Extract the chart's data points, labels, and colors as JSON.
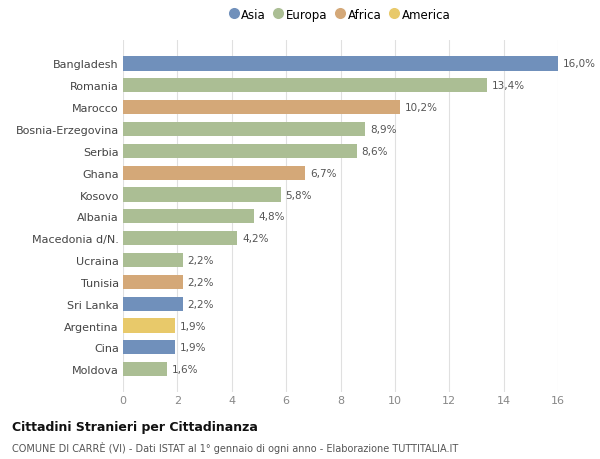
{
  "categories": [
    "Bangladesh",
    "Romania",
    "Marocco",
    "Bosnia-Erzegovina",
    "Serbia",
    "Ghana",
    "Kosovo",
    "Albania",
    "Macedonia d/N.",
    "Ucraina",
    "Tunisia",
    "Sri Lanka",
    "Argentina",
    "Cina",
    "Moldova"
  ],
  "values": [
    16.0,
    13.4,
    10.2,
    8.9,
    8.6,
    6.7,
    5.8,
    4.8,
    4.2,
    2.2,
    2.2,
    2.2,
    1.9,
    1.9,
    1.6
  ],
  "labels": [
    "16,0%",
    "13,4%",
    "10,2%",
    "8,9%",
    "8,6%",
    "6,7%",
    "5,8%",
    "4,8%",
    "4,2%",
    "2,2%",
    "2,2%",
    "2,2%",
    "1,9%",
    "1,9%",
    "1,6%"
  ],
  "continents": [
    "Asia",
    "Europa",
    "Africa",
    "Europa",
    "Europa",
    "Africa",
    "Europa",
    "Europa",
    "Europa",
    "Europa",
    "Africa",
    "Asia",
    "America",
    "Asia",
    "Europa"
  ],
  "continent_colors": {
    "Asia": "#7090bb",
    "Europa": "#abbe94",
    "Africa": "#d4a878",
    "America": "#e8c96a"
  },
  "legend_order": [
    "Asia",
    "Europa",
    "Africa",
    "America"
  ],
  "title1": "Cittadini Stranieri per Cittadinanza",
  "title2": "COMUNE DI CARRÈ (VI) - Dati ISTAT al 1° gennaio di ogni anno - Elaborazione TUTTITALIA.IT",
  "xlim": [
    0,
    16
  ],
  "xticks": [
    0,
    2,
    4,
    6,
    8,
    10,
    12,
    14,
    16
  ],
  "background_color": "#ffffff",
  "plot_bg_color": "#ffffff",
  "grid_color": "#e0e0e0",
  "label_color": "#555555",
  "tick_color": "#888888"
}
